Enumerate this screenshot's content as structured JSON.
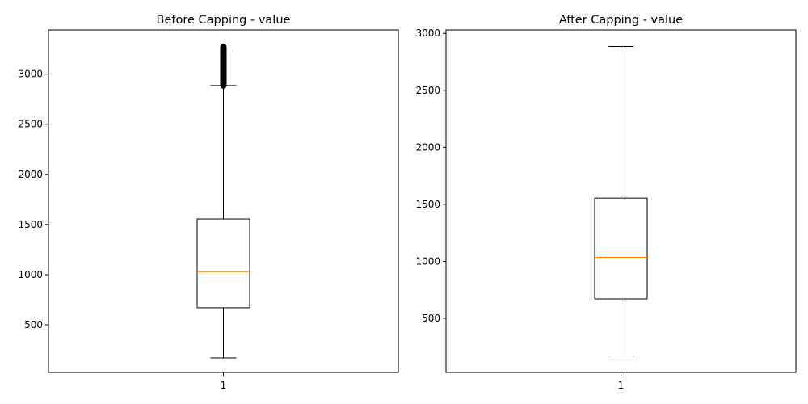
{
  "chart_data": [
    {
      "type": "boxplot",
      "title": "Before Capping - value",
      "categories": [
        "1"
      ],
      "yticks": [
        500,
        1000,
        1500,
        2000,
        2500,
        3000
      ],
      "ylim": [
        25,
        3440
      ],
      "box": {
        "whisker_low": 170,
        "q1": 670,
        "median": 1030,
        "q3": 1555,
        "whisker_high": 2885
      },
      "outliers_range": [
        2885,
        3270
      ],
      "colors": {
        "median": "#ff7f0e",
        "box": "#000000"
      }
    },
    {
      "type": "boxplot",
      "title": "After Capping - value",
      "categories": [
        "1"
      ],
      "yticks": [
        500,
        1000,
        1500,
        2000,
        2500,
        3000
      ],
      "ylim": [
        25,
        3030
      ],
      "box": {
        "whisker_low": 170,
        "q1": 670,
        "median": 1035,
        "q3": 1555,
        "whisker_high": 2885
      },
      "outliers_range": null,
      "colors": {
        "median": "#ff7f0e",
        "box": "#000000"
      }
    }
  ]
}
